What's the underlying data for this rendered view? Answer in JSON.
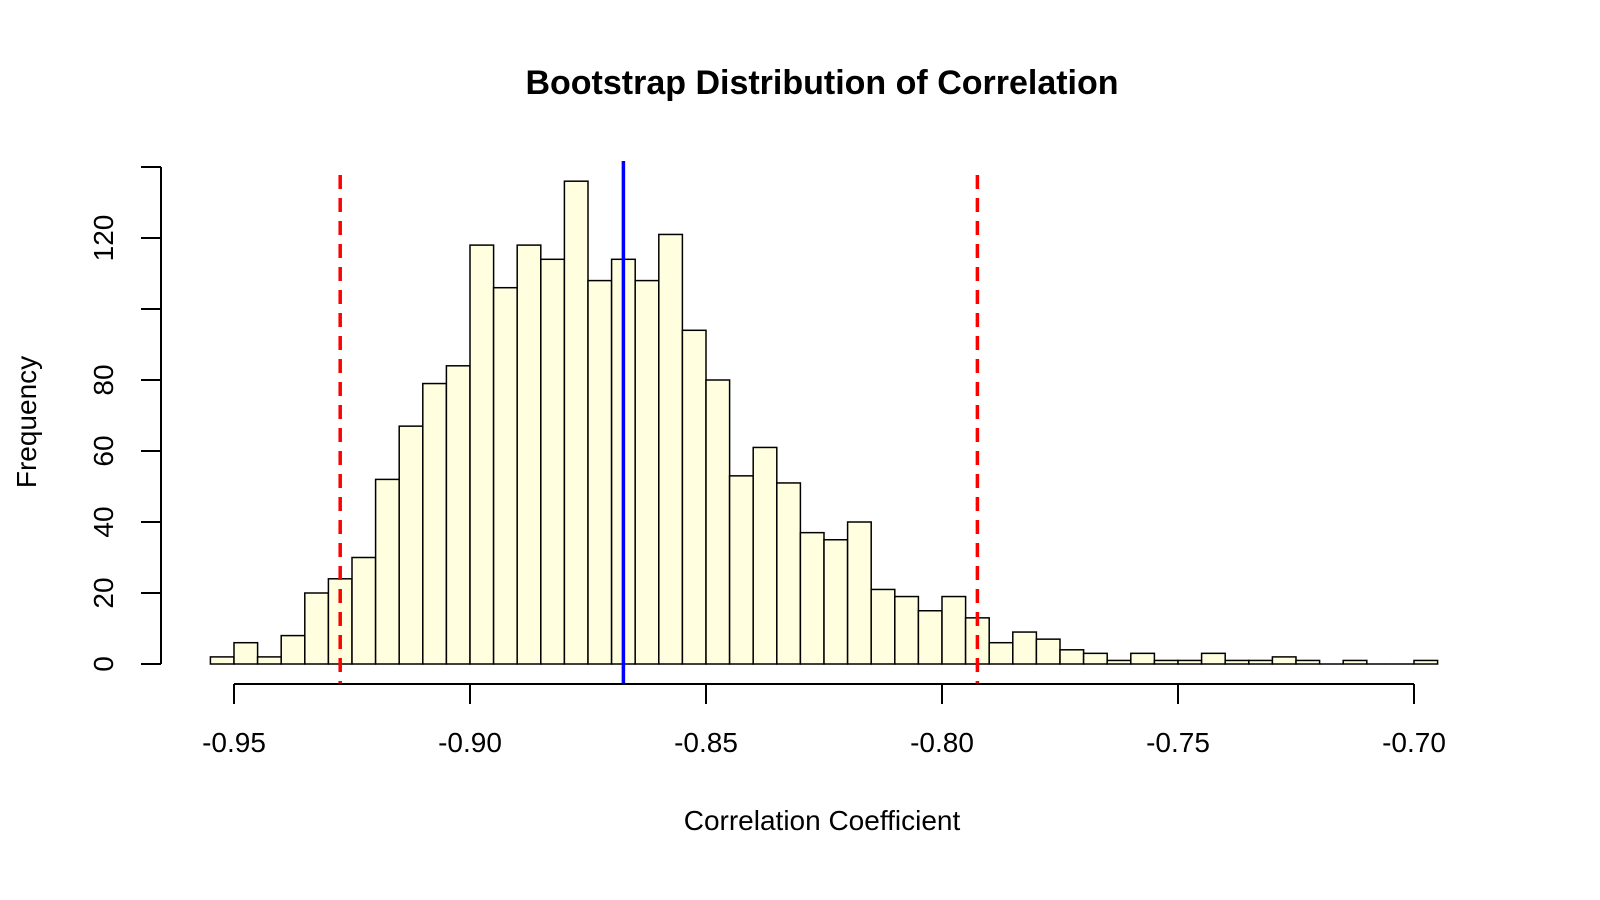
{
  "chart_data": {
    "type": "histogram",
    "title": "Bootstrap Distribution of Correlation",
    "xlabel": "Correlation Coefficient",
    "ylabel": "Frequency",
    "xlim": [
      -0.955,
      -0.695
    ],
    "ylim": [
      0,
      140
    ],
    "grid": false,
    "bin_width": 0.005,
    "bin_start": -0.955,
    "counts": [
      2,
      6,
      2,
      8,
      20,
      24,
      30,
      52,
      67,
      79,
      84,
      118,
      106,
      118,
      114,
      136,
      108,
      114,
      108,
      121,
      94,
      80,
      53,
      61,
      51,
      37,
      35,
      40,
      21,
      19,
      15,
      19,
      13,
      6,
      9,
      7,
      4,
      3,
      1,
      3,
      1,
      1,
      3,
      1,
      1,
      2,
      1,
      0,
      1,
      0,
      0,
      1
    ],
    "x_ticks": [
      -0.95,
      -0.9,
      -0.85,
      -0.8,
      -0.75,
      -0.7
    ],
    "x_tick_labels": [
      "-0.95",
      "-0.90",
      "-0.85",
      "-0.80",
      "-0.75",
      "-0.70"
    ],
    "y_ticks": [
      0,
      20,
      40,
      60,
      80,
      100,
      120,
      140
    ],
    "y_tick_labels": [
      "0",
      "20",
      "40",
      "60",
      "80",
      "",
      "120",
      ""
    ],
    "reference_lines": [
      {
        "x": -0.8675,
        "style": "solid",
        "color": "#0000ff"
      },
      {
        "x": -0.9275,
        "style": "dashed",
        "color": "#ff0000"
      },
      {
        "x": -0.7925,
        "style": "dashed",
        "color": "#ff0000"
      }
    ],
    "bar_fill": "#ffffe0",
    "bar_stroke": "#000000"
  }
}
